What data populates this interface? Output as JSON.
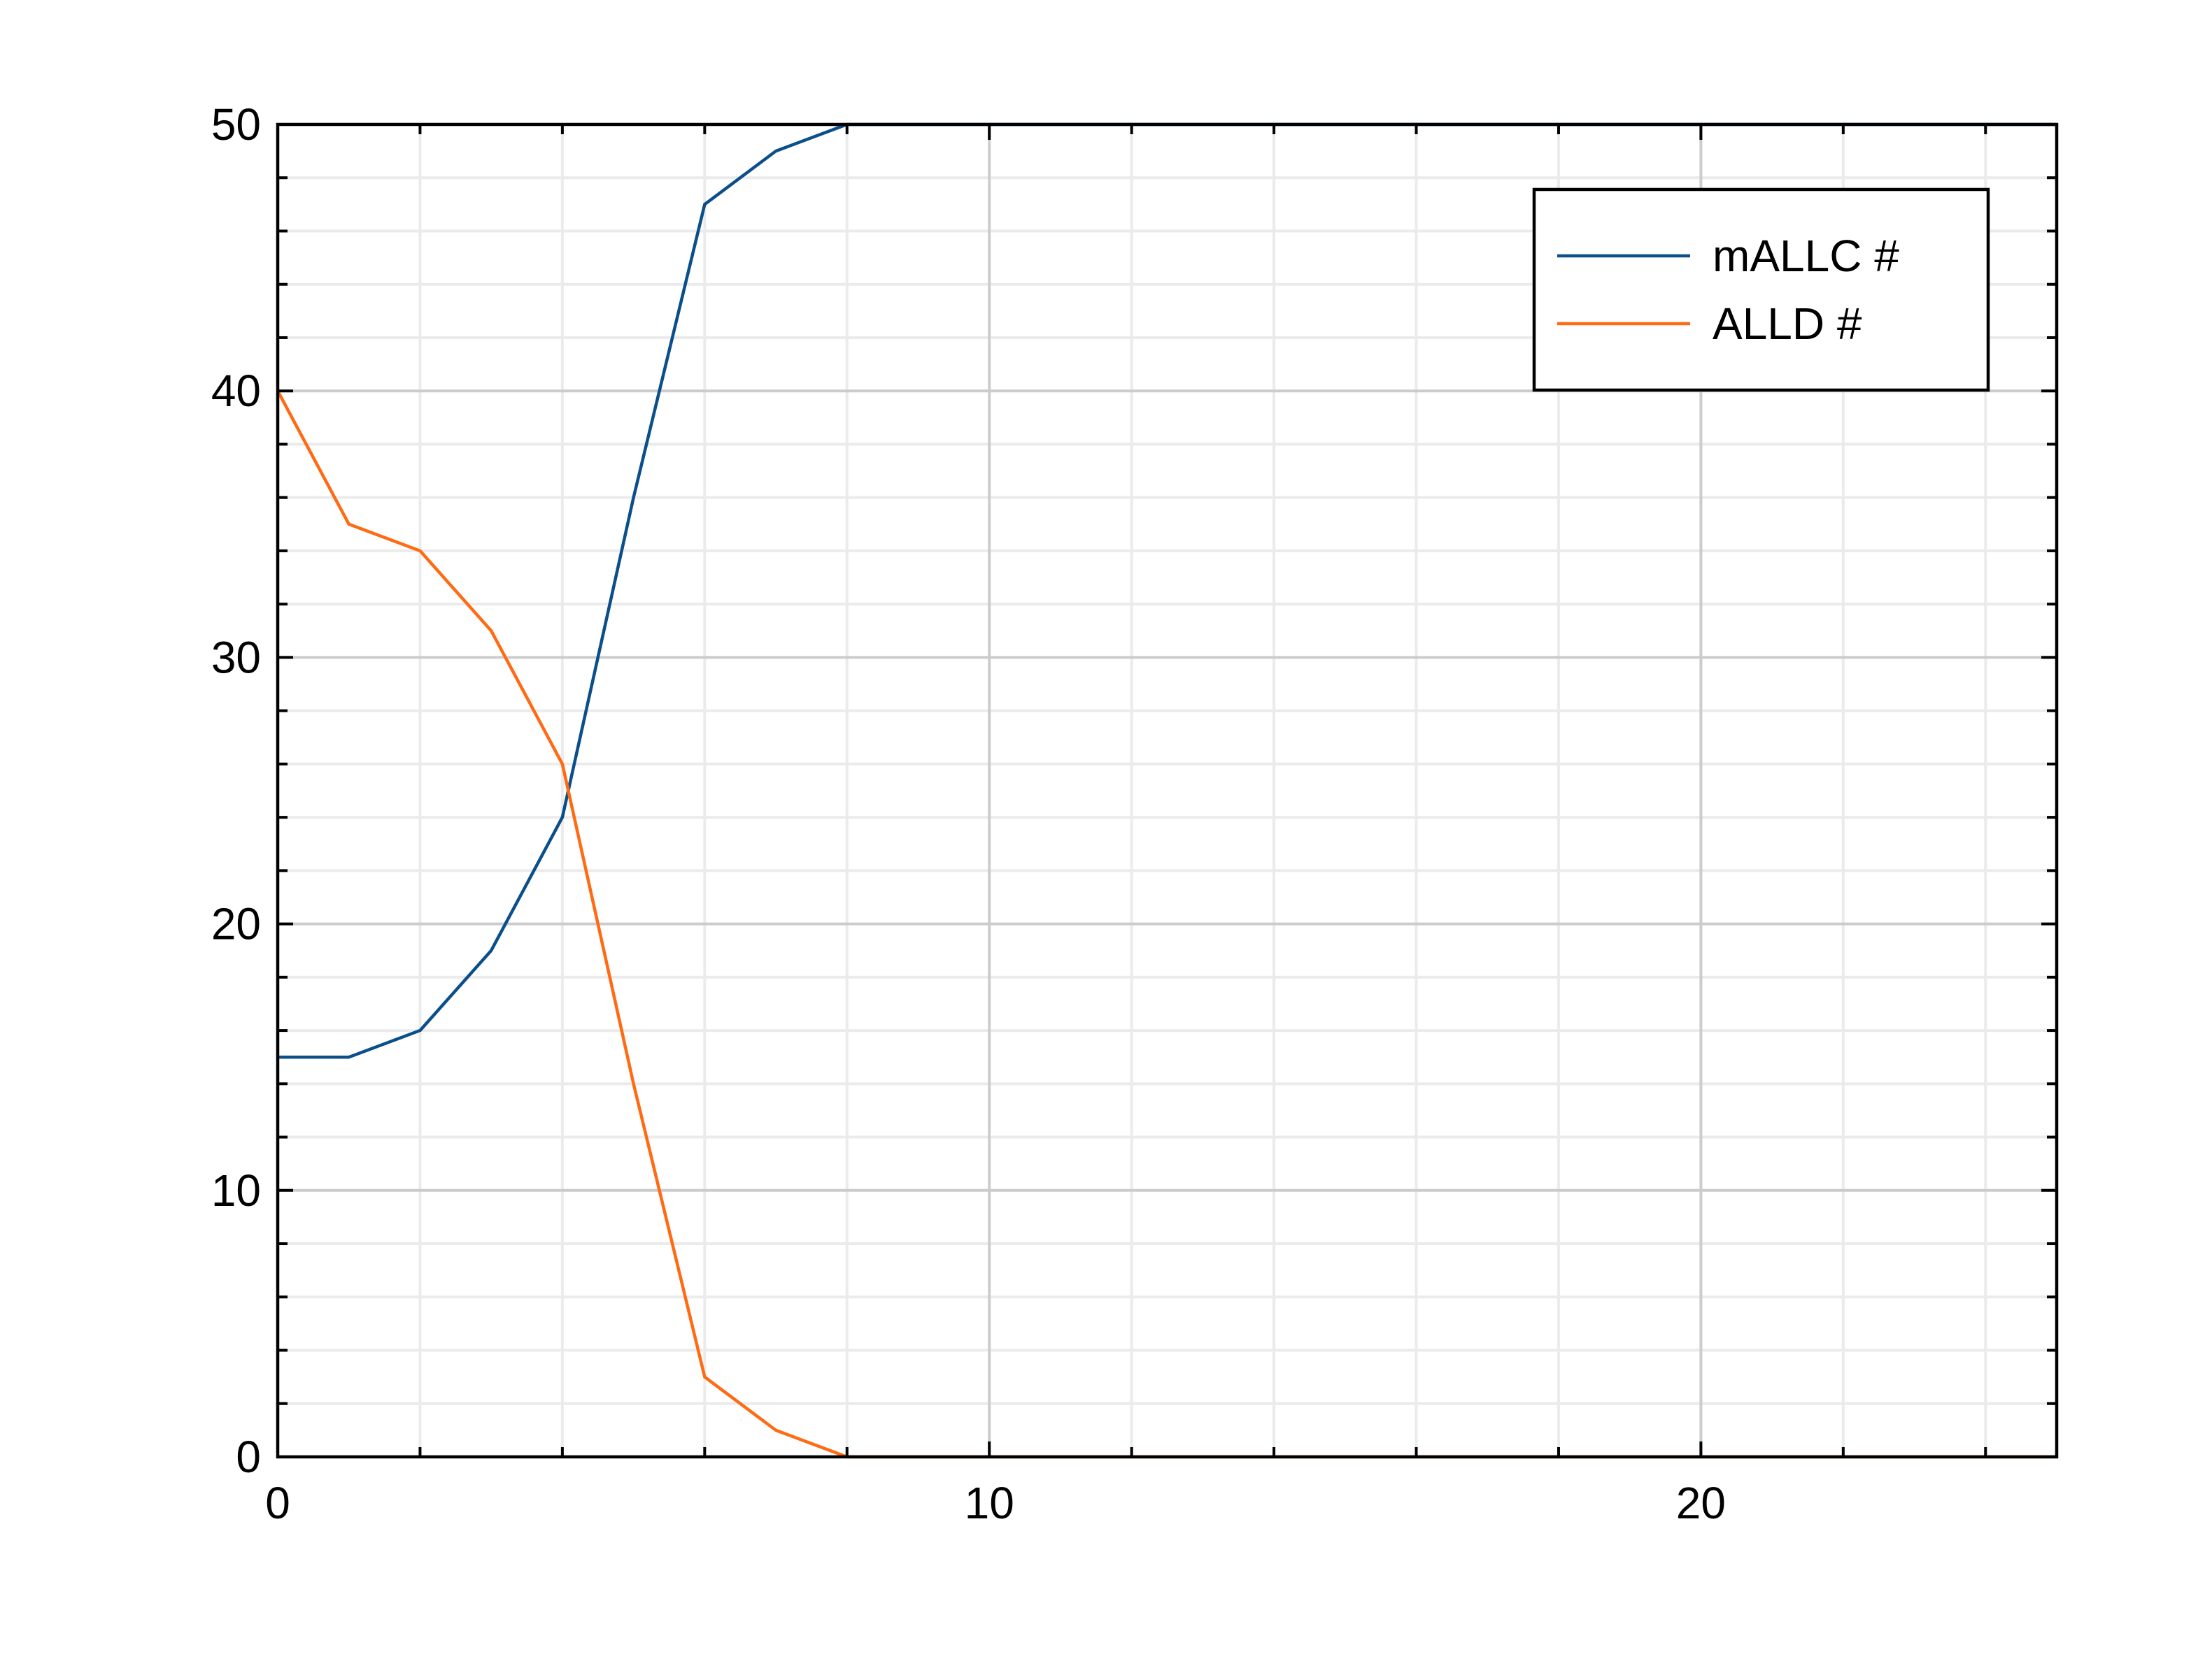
{
  "chart_data": {
    "type": "line",
    "title": "",
    "xlabel": "",
    "ylabel": "",
    "xlim": [
      0,
      25
    ],
    "ylim": [
      0,
      50
    ],
    "x_ticks": [
      0,
      10,
      20
    ],
    "y_ticks": [
      0,
      10,
      20,
      30,
      40,
      50
    ],
    "x_tick_labels": [
      "0",
      "10",
      "20"
    ],
    "y_tick_labels": [
      "0",
      "10",
      "20",
      "30",
      "40",
      "50"
    ],
    "x_minor_step": 2,
    "y_minor_step": 2,
    "grid": true,
    "legend_position": "top-right",
    "x": [
      0,
      1,
      2,
      3,
      4,
      5,
      6,
      7,
      8,
      9,
      10,
      11,
      12,
      13,
      14,
      15,
      16,
      17,
      18,
      19,
      20,
      21,
      22,
      23,
      24,
      25
    ],
    "series": [
      {
        "name": "mALLC #",
        "color": "#0b4f8a",
        "values": [
          15,
          15,
          16,
          19,
          24,
          36,
          47,
          49,
          50,
          50,
          50,
          50,
          50,
          50,
          50,
          50,
          50,
          50,
          50,
          50,
          50,
          50,
          50,
          50,
          50,
          50
        ]
      },
      {
        "name": "ALLD #",
        "color": "#ff6a13",
        "values": [
          40,
          35,
          34,
          31,
          26,
          14,
          3,
          1,
          0,
          0,
          0,
          0,
          0,
          0,
          0,
          0,
          0,
          0,
          0,
          0,
          0,
          0,
          0,
          0,
          0,
          0
        ]
      }
    ]
  }
}
